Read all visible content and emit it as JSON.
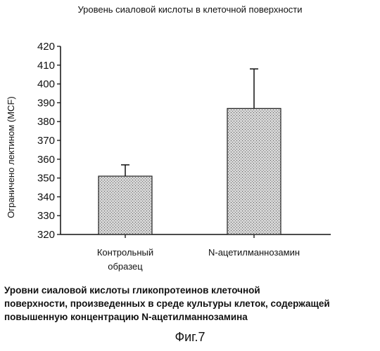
{
  "chart_data": {
    "type": "bar",
    "title": "Уровень сиаловой кислоты в клеточной поверхности",
    "ylabel": "Ограничено лектином (MCF)",
    "xlabel": "",
    "ylim": [
      320,
      420
    ],
    "yticks": [
      320,
      330,
      340,
      350,
      360,
      370,
      380,
      390,
      400,
      410,
      420
    ],
    "categories": [
      {
        "line1": "Контрольный",
        "line2": "образец"
      },
      {
        "line1": "N-ацетилманнозамин",
        "line2": ""
      }
    ],
    "values": [
      351,
      387
    ],
    "error_upper": [
      357,
      408
    ],
    "bar_color": "#c8c8c8",
    "grid": false,
    "legend": "none"
  },
  "caption": {
    "line1": "Уровни сиаловой кислоты гликопротеинов клеточной",
    "line2": "поверхности, произведенных в среде культуры клеток, содержащей",
    "line3": "повышенную концентрацию N-ацетилманнозамина"
  },
  "figure_label": "Фиг.7"
}
